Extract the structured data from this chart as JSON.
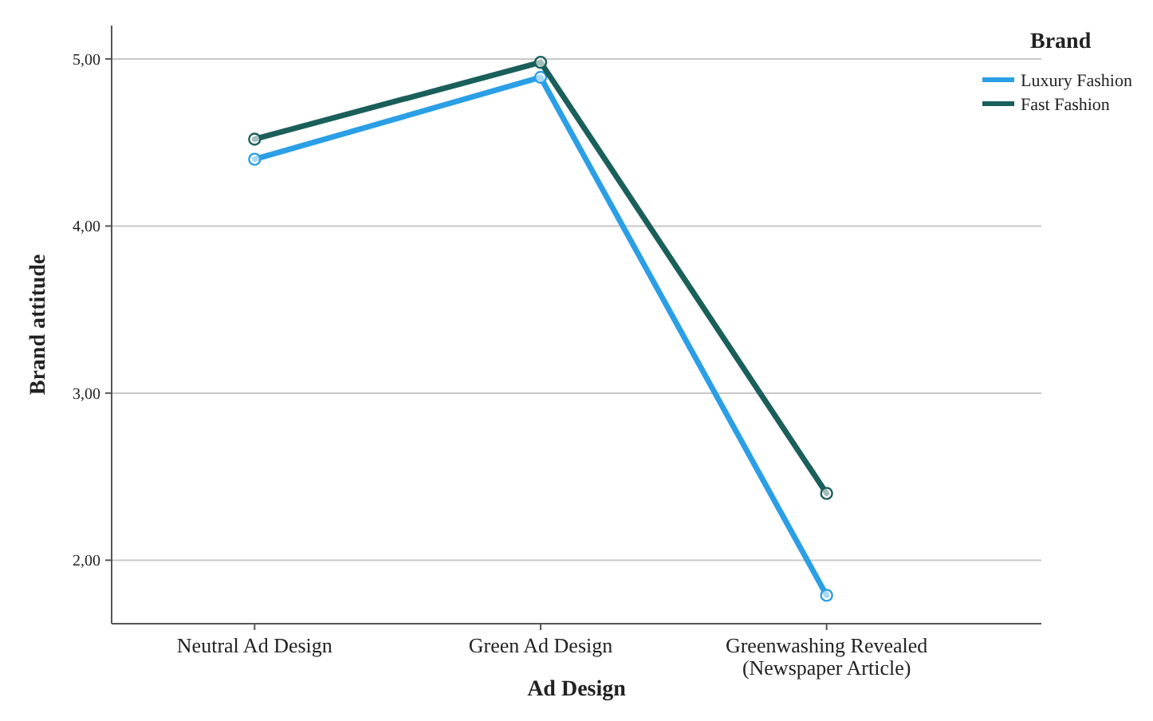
{
  "chart_data": {
    "type": "line",
    "xlabel": "Ad Design",
    "ylabel": "Brand attitude",
    "legend_title": "Brand",
    "categories": [
      "Neutral Ad Design",
      "Green Ad Design",
      "Greenwashing Revealed\n(Newspaper Article)"
    ],
    "series": [
      {
        "name": "Luxury Fashion",
        "color": "#2b9fe6",
        "values": [
          4.4,
          4.89,
          1.79
        ]
      },
      {
        "name": "Fast Fashion",
        "color": "#1a5f5a",
        "values": [
          4.52,
          4.98,
          2.4
        ]
      }
    ],
    "ylim": [
      1.62,
      5.2
    ],
    "yticks": [
      {
        "value": 2,
        "label": "2,00"
      },
      {
        "value": 3,
        "label": "3,00"
      },
      {
        "value": 4,
        "label": "4,00"
      },
      {
        "value": 5,
        "label": "5,00"
      }
    ],
    "grid": "y",
    "legend": "top right",
    "marker": "circle",
    "line_style": "solid"
  }
}
